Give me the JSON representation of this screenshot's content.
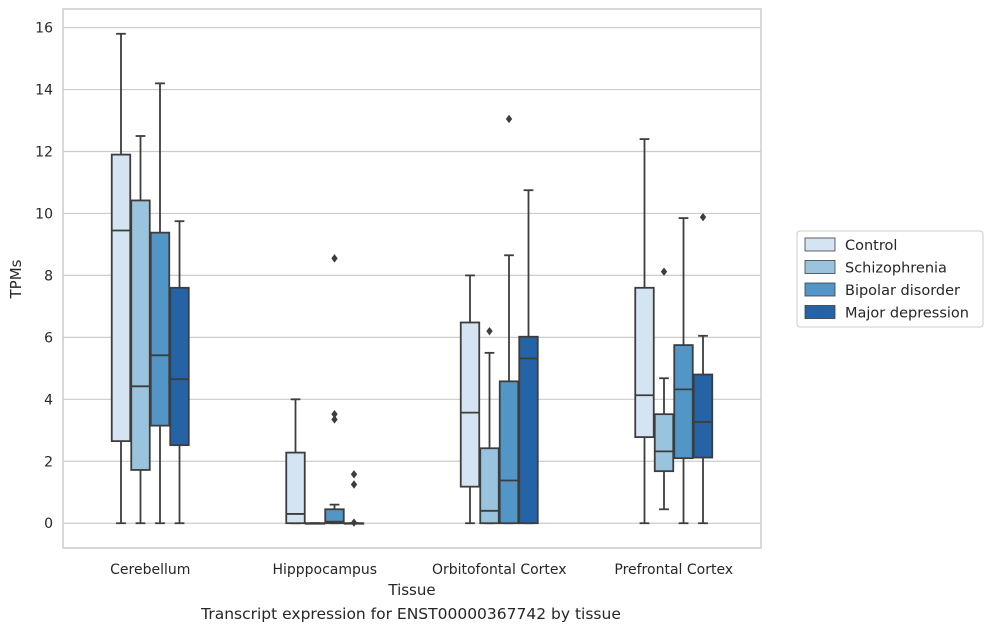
{
  "caption": "Transcript expression for ENST00000367742 by tissue",
  "colors": {
    "series": [
      "#d4e4f2",
      "#9ac4dd",
      "#5296c7",
      "#2563a7"
    ],
    "line": "#3d3d3d",
    "grid": "#cccccc",
    "frame": "#cccccc"
  },
  "chart_data": {
    "type": "boxplot",
    "title": "",
    "xlabel": "Tissue",
    "ylabel": "TPMs",
    "ylim": [
      -0.8,
      16.6
    ],
    "yticks": [
      0,
      2,
      4,
      6,
      8,
      10,
      12,
      14,
      16
    ],
    "grid": "horizontal",
    "legend_position": "right",
    "categories": [
      "Cerebellum",
      "Hipppocampus",
      "Orbitofontal Cortex",
      "Prefrontal Cortex"
    ],
    "series": [
      {
        "name": "Control",
        "boxes": [
          {
            "whislo": 0,
            "q1": 2.65,
            "med": 9.45,
            "q3": 11.9,
            "whishi": 15.8,
            "fliers": []
          },
          {
            "whislo": 0,
            "q1": 0,
            "med": 0.3,
            "q3": 2.28,
            "whishi": 4.0,
            "fliers": []
          },
          {
            "whislo": 0,
            "q1": 1.18,
            "med": 3.57,
            "q3": 6.48,
            "whishi": 8.0,
            "fliers": []
          },
          {
            "whislo": 0,
            "q1": 2.78,
            "med": 4.13,
            "q3": 7.6,
            "whishi": 12.4,
            "fliers": []
          }
        ]
      },
      {
        "name": "Schizophrenia",
        "boxes": [
          {
            "whislo": 0,
            "q1": 1.72,
            "med": 4.42,
            "q3": 10.42,
            "whishi": 12.5,
            "fliers": []
          },
          {
            "whislo": 0,
            "q1": 0,
            "med": 0,
            "q3": 0,
            "whishi": 0,
            "fliers": []
          },
          {
            "whislo": 0,
            "q1": 0,
            "med": 0.4,
            "q3": 2.42,
            "whishi": 5.5,
            "fliers": [
              6.2
            ]
          },
          {
            "whislo": 0.45,
            "q1": 1.68,
            "med": 2.32,
            "q3": 3.52,
            "whishi": 4.68,
            "fliers": [
              8.12
            ]
          }
        ]
      },
      {
        "name": "Bipolar disorder",
        "boxes": [
          {
            "whislo": 0,
            "q1": 3.15,
            "med": 5.42,
            "q3": 9.38,
            "whishi": 14.2,
            "fliers": []
          },
          {
            "whislo": 0,
            "q1": 0,
            "med": 0.05,
            "q3": 0.45,
            "whishi": 0.6,
            "fliers": [
              8.55,
              3.52,
              3.35
            ]
          },
          {
            "whislo": 0,
            "q1": 0,
            "med": 1.38,
            "q3": 4.58,
            "whishi": 8.65,
            "fliers": [
              13.05
            ]
          },
          {
            "whislo": 0,
            "q1": 2.1,
            "med": 4.32,
            "q3": 5.75,
            "whishi": 9.85,
            "fliers": []
          }
        ]
      },
      {
        "name": "Major depression",
        "boxes": [
          {
            "whislo": 0,
            "q1": 2.52,
            "med": 4.65,
            "q3": 7.6,
            "whishi": 9.75,
            "fliers": []
          },
          {
            "whislo": 0,
            "q1": 0,
            "med": 0,
            "q3": 0,
            "whishi": 0,
            "fliers": [
              1.58,
              1.25,
              0.02
            ]
          },
          {
            "whislo": 0,
            "q1": 0,
            "med": 5.32,
            "q3": 6.02,
            "whishi": 10.75,
            "fliers": []
          },
          {
            "whislo": 0,
            "q1": 2.12,
            "med": 3.27,
            "q3": 4.8,
            "whishi": 6.05,
            "fliers": [
              9.88
            ]
          }
        ]
      }
    ]
  }
}
